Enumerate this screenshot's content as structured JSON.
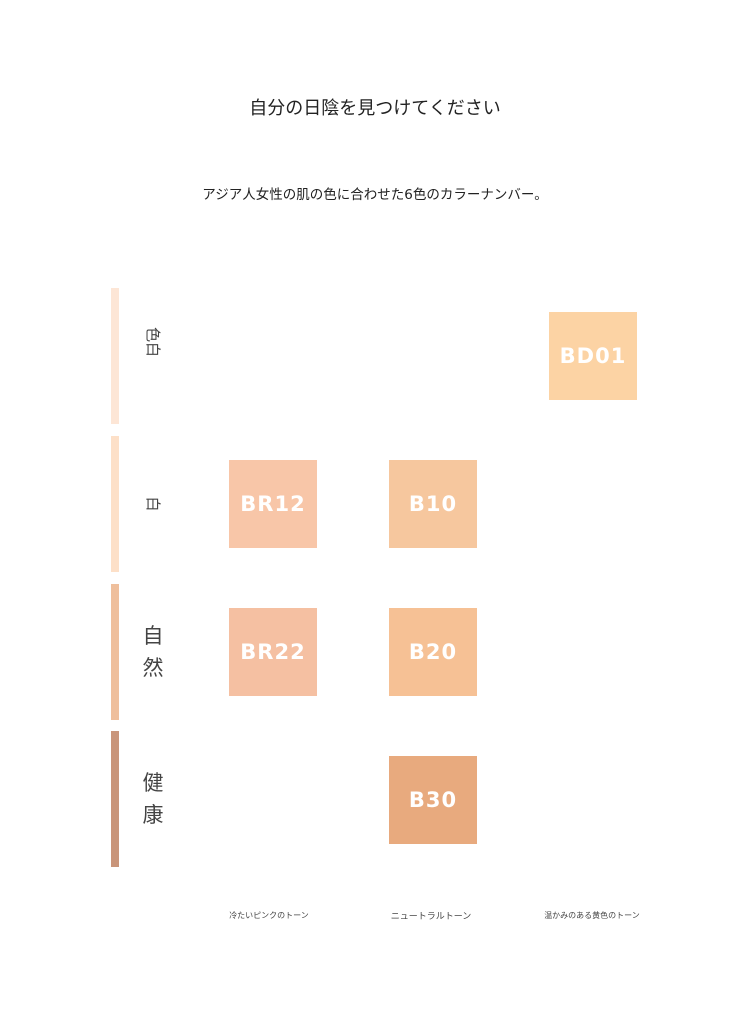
{
  "title": "自分の日陰を見つけてください",
  "subtitle": "アジア人女性の肌の色に合わせた6色のカラーナンバー。",
  "rows": [
    {
      "label": "色白",
      "color": "#fde6d6"
    },
    {
      "label": "白",
      "color": "#fde0c8"
    },
    {
      "label": "自然",
      "color": "#efbf9c"
    },
    {
      "label": "健康",
      "color": "#c9957a"
    }
  ],
  "swatches": [
    {
      "code": "BD01",
      "color": "#fcd3a4"
    },
    {
      "code": "BR12",
      "color": "#f8c6a8"
    },
    {
      "code": "B10",
      "color": "#f6c79e"
    },
    {
      "code": "BR22",
      "color": "#f5c0a2"
    },
    {
      "code": "B20",
      "color": "#f6c195"
    },
    {
      "code": "B30",
      "color": "#e8aa7e"
    }
  ],
  "tones": [
    "冷たいピンクのトーン",
    "ニュートラルトーン",
    "温かみのある黄色のトーン"
  ]
}
